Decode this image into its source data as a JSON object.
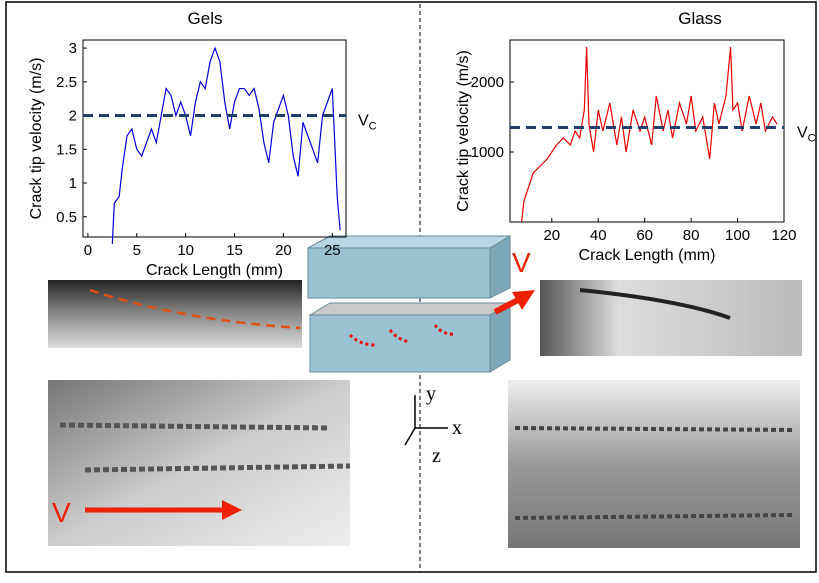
{
  "chart_data": [
    {
      "type": "line",
      "title": "Gels",
      "xlabel": "Crack Length (mm)",
      "ylabel": "Crack tip velocity (m/s)",
      "x": [
        2.5,
        2.7,
        3.2,
        3.5,
        4,
        4.5,
        5,
        5.5,
        6,
        6.5,
        7,
        7.5,
        8,
        8.5,
        9,
        9.5,
        10,
        10.5,
        11,
        11.5,
        12,
        12.5,
        13,
        13.5,
        14,
        14.5,
        15,
        15.5,
        16,
        16.5,
        17,
        17.5,
        18,
        18.5,
        19,
        19.5,
        20,
        20.5,
        21,
        21.5,
        22,
        22.5,
        23,
        23.5,
        24,
        24.5,
        25,
        25.5,
        25.8
      ],
      "series": [
        {
          "color": "#0000dd",
          "values": [
            0.1,
            0.7,
            0.8,
            1.2,
            1.7,
            1.8,
            1.5,
            1.4,
            1.6,
            1.8,
            1.6,
            2.0,
            2.4,
            2.3,
            2.0,
            2.2,
            2.0,
            1.7,
            2.2,
            2.5,
            2.4,
            2.8,
            3.0,
            2.8,
            2.2,
            1.8,
            2.2,
            2.4,
            2.4,
            2.3,
            2.4,
            2.1,
            1.6,
            1.3,
            1.9,
            2.1,
            2.3,
            2.0,
            1.4,
            1.1,
            1.9,
            1.7,
            1.5,
            1.3,
            2.0,
            2.2,
            2.4,
            0.8,
            0.3
          ]
        }
      ],
      "threshold": {
        "value": 2,
        "color": "#1f3f6f",
        "text": "V",
        "subscript": "C"
      },
      "xlim": [
        -0.5,
        26.4
      ],
      "ylim": [
        0.2,
        3.12
      ],
      "xticks": [
        0,
        5,
        10,
        15,
        20,
        25
      ],
      "yticks": [
        0.5,
        1,
        1.5,
        2,
        2.5,
        3
      ]
    },
    {
      "type": "line",
      "title": "Glass",
      "xlabel": "Crack Length (mm)",
      "ylabel": "Crack tip velocity (m/s)",
      "x": [
        7,
        8,
        10,
        12,
        15,
        18,
        20,
        22,
        25,
        28,
        30,
        32,
        34,
        35,
        36,
        38,
        40,
        42,
        45,
        48,
        50,
        52,
        55,
        58,
        60,
        63,
        65,
        68,
        70,
        72,
        75,
        78,
        80,
        82,
        85,
        88,
        90,
        92,
        95,
        97,
        98,
        100,
        102,
        105,
        108,
        110,
        112,
        115,
        117
      ],
      "series": [
        {
          "color": "#ee0000",
          "values": [
            0,
            300,
            500,
            700,
            800,
            900,
            1000,
            1100,
            1200,
            1100,
            1300,
            1200,
            1600,
            2500,
            1400,
            1000,
            1600,
            1300,
            1700,
            1100,
            1500,
            1000,
            1600,
            1300,
            1500,
            1100,
            1800,
            1300,
            1600,
            1200,
            1700,
            1400,
            1800,
            1300,
            1500,
            900,
            1700,
            1400,
            1800,
            2500,
            1600,
            1700,
            1300,
            1800,
            1400,
            1700,
            1300,
            1500,
            1400
          ]
        }
      ],
      "threshold": {
        "value": 1350,
        "color": "#1f3f6f",
        "text": "V",
        "subscript": "C"
      },
      "xlim": [
        2,
        120
      ],
      "ylim": [
        0,
        2600
      ],
      "xticks": [
        20,
        40,
        60,
        80,
        100,
        120
      ],
      "yticks": [
        1000,
        2000
      ]
    }
  ],
  "labels": {
    "v_gel": "V",
    "v_block": "V",
    "x": "x",
    "y": "y",
    "z": "z"
  }
}
